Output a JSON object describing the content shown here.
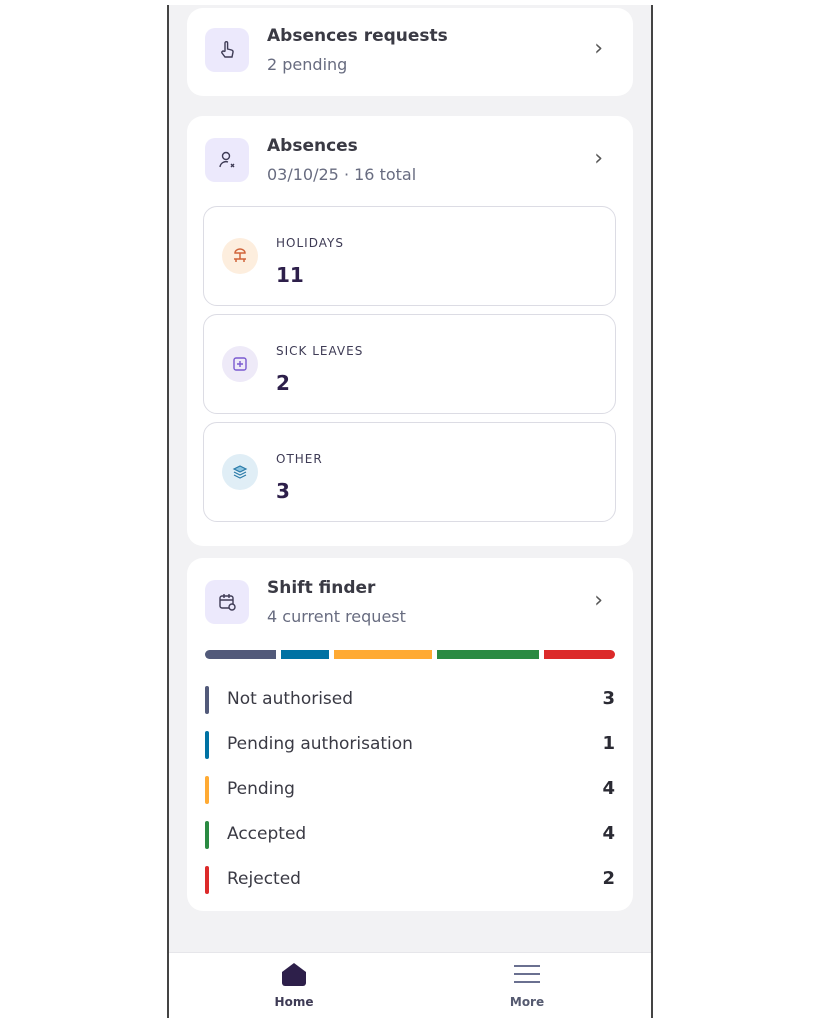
{
  "absence_requests": {
    "title": "Absences requests",
    "subtitle": "2 pending",
    "icon": "hand-pointer-icon"
  },
  "absences": {
    "title": "Absences",
    "subtitle": "03/10/25 · 16 total",
    "icon": "user-x-icon",
    "items": [
      {
        "label": "HOLIDAYS",
        "value": "11",
        "icon": "beach-chair-icon",
        "color": "#fdeede"
      },
      {
        "label": "SICK LEAVES",
        "value": "2",
        "icon": "medical-icon",
        "color": "#eeeaf8"
      },
      {
        "label": "OTHER",
        "value": "3",
        "icon": "layers-icon",
        "color": "#e0eef6"
      }
    ]
  },
  "shift_finder": {
    "title": "Shift finder",
    "subtitle": "4 current request",
    "icon": "calendar-clock-icon",
    "statuses": [
      {
        "label": "Not authorised",
        "count": "3",
        "color": "#525a7a"
      },
      {
        "label": "Pending authorisation",
        "count": "1",
        "color": "#0072a3"
      },
      {
        "label": "Pending",
        "count": "4",
        "color": "#ffaa33"
      },
      {
        "label": "Accepted",
        "count": "4",
        "color": "#2a8a42"
      },
      {
        "label": "Rejected",
        "count": "2",
        "color": "#dc2a2a"
      }
    ]
  },
  "nav": {
    "home": "Home",
    "more": "More"
  }
}
